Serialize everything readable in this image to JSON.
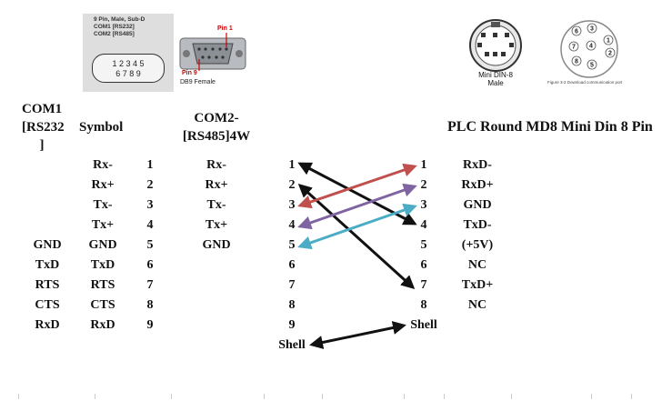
{
  "dsub_image": {
    "line1": "9 Pin, Male, Sub-D",
    "line2": "COM1 [RS232]",
    "line3": "COM2 [RS485]",
    "pins_top": "1 2 3 4 5",
    "pins_bottom": "6 7 8 9"
  },
  "db9_image": {
    "pin1_label": "Pin 1",
    "pin9_label": "Pin 9",
    "caption": "DB9 Female"
  },
  "minidin_image": {
    "caption_line1": "Mini DIN-8",
    "caption_line2": "Male"
  },
  "pinfig_image": {
    "caption": "Figure 3-2 Download communication port",
    "pin_numbers": [
      "1",
      "2",
      "3",
      "4",
      "5",
      "6",
      "7",
      "8"
    ]
  },
  "headers": {
    "com1": "COM1 [RS232 ]",
    "symbol": "Symbol",
    "com2": "COM2- [RS485]4W",
    "plc": "PLC Round MD8 Mini Din 8 Pin"
  },
  "rows": [
    {
      "com1": "",
      "symbol": "Rx-",
      "pin": "1",
      "com2": "Rx-",
      "left": "1",
      "right": "1",
      "plc": "RxD-"
    },
    {
      "com1": "",
      "symbol": "Rx+",
      "pin": "2",
      "com2": "Rx+",
      "left": "2",
      "right": "2",
      "plc": "RxD+"
    },
    {
      "com1": "",
      "symbol": "Tx-",
      "pin": "3",
      "com2": "Tx-",
      "left": "3",
      "right": "3",
      "plc": "GND"
    },
    {
      "com1": "",
      "symbol": "Tx+",
      "pin": "4",
      "com2": "Tx+",
      "left": "4",
      "right": "4",
      "plc": "TxD-"
    },
    {
      "com1": "GND",
      "symbol": "GND",
      "pin": "5",
      "com2": "GND",
      "left": "5",
      "right": "5",
      "plc": "(+5V)"
    },
    {
      "com1": "TxD",
      "symbol": "TxD",
      "pin": "6",
      "com2": "",
      "left": "6",
      "right": "6",
      "plc": "NC"
    },
    {
      "com1": "RTS",
      "symbol": "RTS",
      "pin": "7",
      "com2": "",
      "left": "7",
      "right": "7",
      "plc": "TxD+"
    },
    {
      "com1": "CTS",
      "symbol": "CTS",
      "pin": "8",
      "com2": "",
      "left": "8",
      "right": "8",
      "plc": "NC"
    },
    {
      "com1": "RxD",
      "symbol": "RxD",
      "pin": "9",
      "com2": "",
      "left": "9",
      "right": "Shell",
      "plc": ""
    }
  ],
  "shell_left": "Shell",
  "connections": [
    {
      "from": "1",
      "to": "4",
      "color": "#111111"
    },
    {
      "from": "2",
      "to": "7",
      "color": "#111111"
    },
    {
      "from": "3",
      "to": "1",
      "color": "#c0504d"
    },
    {
      "from": "4",
      "to": "2",
      "color": "#8064a2"
    },
    {
      "from": "5",
      "to": "3",
      "color": "#4bacc6"
    },
    {
      "from": "Shell",
      "to": "Shell",
      "color": "#111111"
    }
  ]
}
